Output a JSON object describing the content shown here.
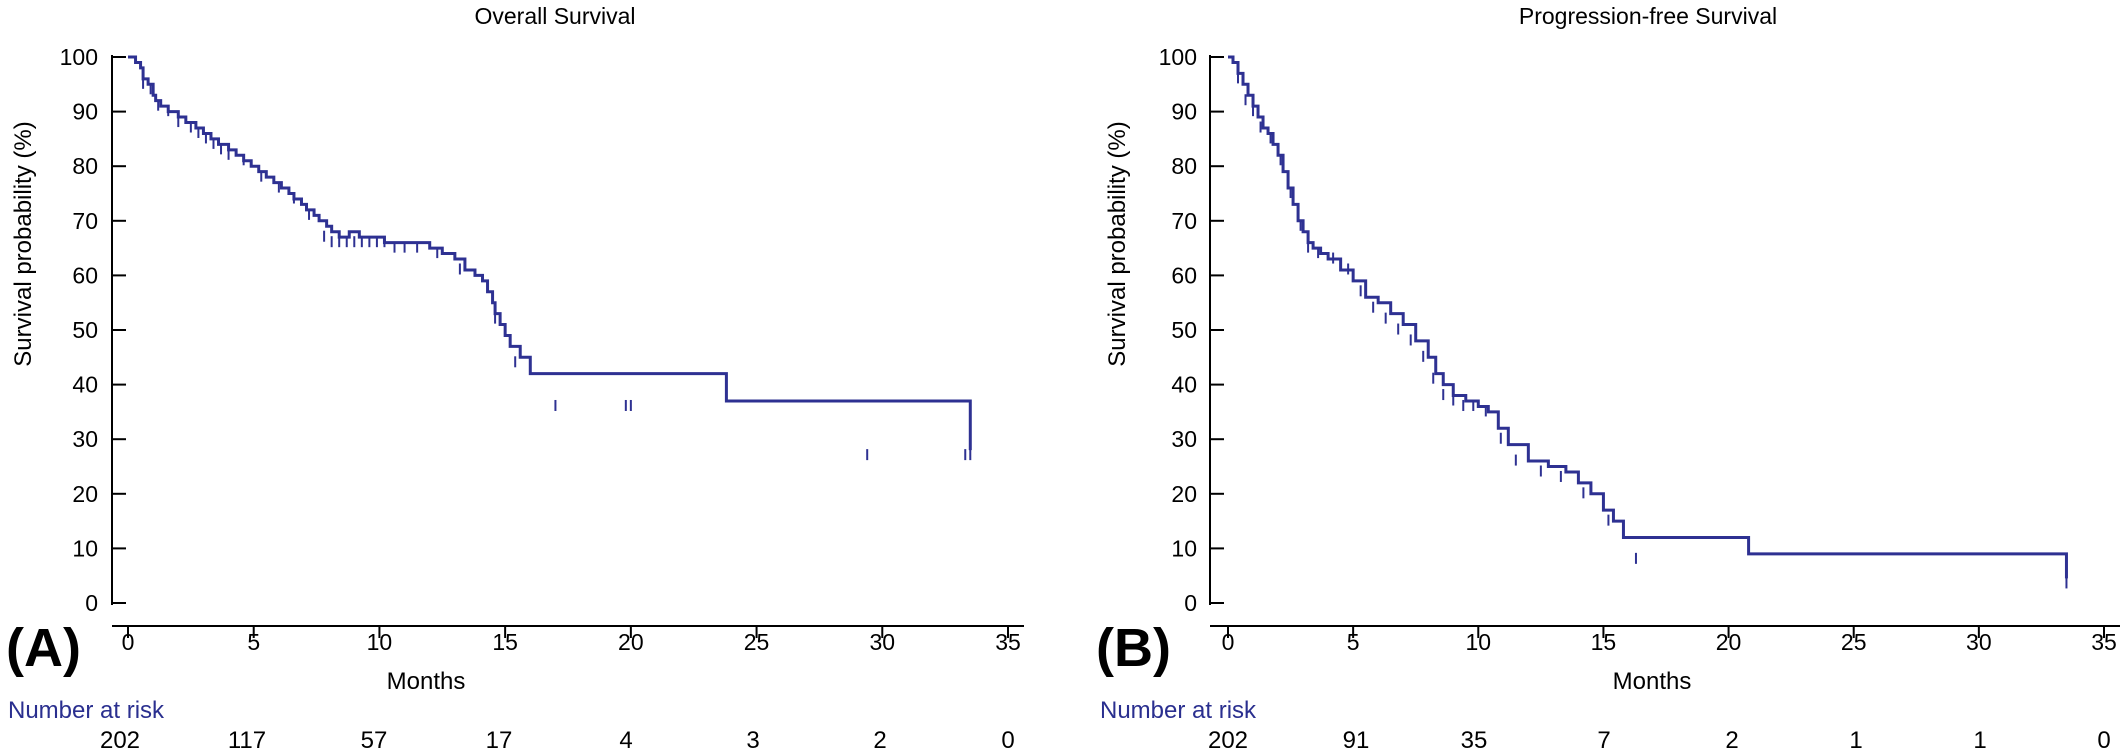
{
  "number_at_risk_label": "Number at risk",
  "colors": {
    "curve": "#2e3192",
    "risk_label": "#2a2f8f",
    "axis": "#000000"
  },
  "panels": [
    {
      "label": "(A)",
      "title": "Overall Survival",
      "xlabel": "Months",
      "ylabel": "Survival probability (%)",
      "number_at_risk": [
        "202",
        "117",
        "57",
        "17",
        "4",
        "3",
        "2",
        "0"
      ]
    },
    {
      "label": "(B)",
      "title": "Progression-free Survival",
      "xlabel": "Months",
      "ylabel": "Survival probability (%)",
      "number_at_risk": [
        "202",
        "91",
        "35",
        "7",
        "2",
        "1",
        "1",
        "0"
      ]
    }
  ],
  "chart_data": [
    {
      "type": "line",
      "step": true,
      "title": "Overall Survival",
      "xlabel": "Months",
      "ylabel": "Survival probability (%)",
      "xlim": [
        0,
        35
      ],
      "ylim": [
        0,
        100
      ],
      "xticks": [
        0,
        5,
        10,
        15,
        20,
        25,
        30,
        35
      ],
      "yticks": [
        0,
        10,
        20,
        30,
        40,
        50,
        60,
        70,
        80,
        90,
        100
      ],
      "grid": false,
      "number_at_risk": {
        "months": [
          0,
          5,
          10,
          15,
          20,
          25,
          30,
          35
        ],
        "values": [
          202,
          117,
          57,
          17,
          4,
          3,
          2,
          0
        ]
      },
      "series": [
        {
          "x": [
            0,
            0.3,
            0.5,
            0.6,
            0.8,
            1.0,
            1.1,
            1.3,
            1.6,
            2.0,
            2.3,
            2.7,
            3.0,
            3.3,
            3.6,
            4.0,
            4.3,
            4.6,
            4.9,
            5.2,
            5.5,
            5.8,
            6.1,
            6.4,
            6.6,
            6.9,
            7.1,
            7.4,
            7.6,
            7.9,
            8.1,
            8.4,
            8.8,
            9.2,
            9.6,
            10.2,
            10.8,
            11.4,
            12.0,
            12.5,
            13.0,
            13.4,
            13.8,
            14.1,
            14.3,
            14.5,
            14.6,
            14.8,
            15.0,
            15.2,
            15.6,
            16.0,
            16.8,
            23.8,
            33.5
          ],
          "y": [
            100,
            99,
            98,
            96,
            95,
            93,
            92,
            91,
            90,
            89,
            88,
            87,
            86,
            85,
            84,
            83,
            82,
            81,
            80,
            79,
            78,
            77,
            76,
            75,
            74,
            73,
            72,
            71,
            70,
            69,
            68,
            67,
            68,
            67,
            67,
            66,
            66,
            66,
            65,
            64,
            63,
            61,
            60,
            59,
            57,
            55,
            53,
            51,
            49,
            47,
            45,
            42,
            42,
            37,
            28
          ],
          "censor_marks": {
            "x": [
              0.6,
              0.9,
              1.2,
              1.6,
              2.0,
              2.5,
              2.8,
              3.1,
              3.4,
              3.7,
              4.0,
              4.6,
              5.3,
              6.0,
              6.6,
              7.2,
              7.8,
              8.1,
              8.4,
              8.7,
              9.0,
              9.3,
              9.6,
              9.9,
              10.2,
              10.6,
              11.0,
              11.5,
              12.3,
              13.2,
              14.6,
              15.4,
              17.0,
              19.8,
              20.0,
              29.4,
              33.3,
              33.5
            ],
            "y": [
              96,
              95,
              92,
              91,
              89,
              88,
              87,
              86,
              85,
              84,
              83,
              82,
              79,
              77,
              75,
              72,
              68,
              67,
              67,
              67,
              67,
              67,
              67,
              67,
              67,
              66,
              66,
              66,
              65,
              62,
              53,
              45,
              37,
              37,
              37,
              28,
              28,
              28
            ]
          }
        }
      ]
    },
    {
      "type": "line",
      "step": true,
      "title": "Progression-free Survival",
      "xlabel": "Months",
      "ylabel": "Survival probability (%)",
      "xlim": [
        0,
        35
      ],
      "ylim": [
        0,
        100
      ],
      "xticks": [
        0,
        5,
        10,
        15,
        20,
        25,
        30,
        35
      ],
      "yticks": [
        0,
        10,
        20,
        30,
        40,
        50,
        60,
        70,
        80,
        90,
        100
      ],
      "grid": false,
      "number_at_risk": {
        "months": [
          0,
          5,
          10,
          15,
          20,
          25,
          30,
          35
        ],
        "values": [
          202,
          91,
          35,
          7,
          2,
          1,
          1,
          0
        ]
      },
      "series": [
        {
          "x": [
            0,
            0.2,
            0.4,
            0.6,
            0.8,
            1.0,
            1.2,
            1.4,
            1.6,
            1.8,
            2.0,
            2.2,
            2.4,
            2.6,
            2.8,
            3.0,
            3.2,
            3.4,
            3.7,
            4.0,
            4.5,
            5.0,
            5.5,
            6.0,
            6.5,
            7.0,
            7.5,
            8.0,
            8.3,
            8.6,
            9.0,
            9.5,
            10.0,
            10.4,
            10.8,
            11.2,
            12.0,
            12.8,
            13.5,
            14.0,
            14.5,
            15.0,
            15.4,
            15.8,
            20.8,
            33.5
          ],
          "y": [
            100,
            99,
            97,
            95,
            93,
            91,
            89,
            87,
            86,
            84,
            82,
            79,
            76,
            73,
            70,
            68,
            66,
            65,
            64,
            63,
            61,
            59,
            56,
            55,
            53,
            51,
            48,
            45,
            42,
            40,
            38,
            37,
            36,
            35,
            32,
            29,
            26,
            25,
            24,
            22,
            20,
            17,
            15,
            12,
            9,
            4.5
          ],
          "censor_marks": {
            "x": [
              0.4,
              0.7,
              1.0,
              1.3,
              1.7,
              2.1,
              2.5,
              2.9,
              3.2,
              3.6,
              4.2,
              4.8,
              5.3,
              5.8,
              6.3,
              6.8,
              7.3,
              7.8,
              8.2,
              8.6,
              9.0,
              9.4,
              9.8,
              10.3,
              10.9,
              11.5,
              12.5,
              13.3,
              14.2,
              15.2,
              16.3,
              33.5
            ],
            "y": [
              97,
              93,
              91,
              88,
              86,
              82,
              76,
              70,
              66,
              65,
              64,
              62,
              58,
              55,
              53,
              51,
              49,
              46,
              42,
              39,
              38,
              37,
              37,
              36,
              31,
              27,
              25,
              24,
              21,
              16,
              9,
              4.5
            ]
          }
        }
      ]
    }
  ]
}
